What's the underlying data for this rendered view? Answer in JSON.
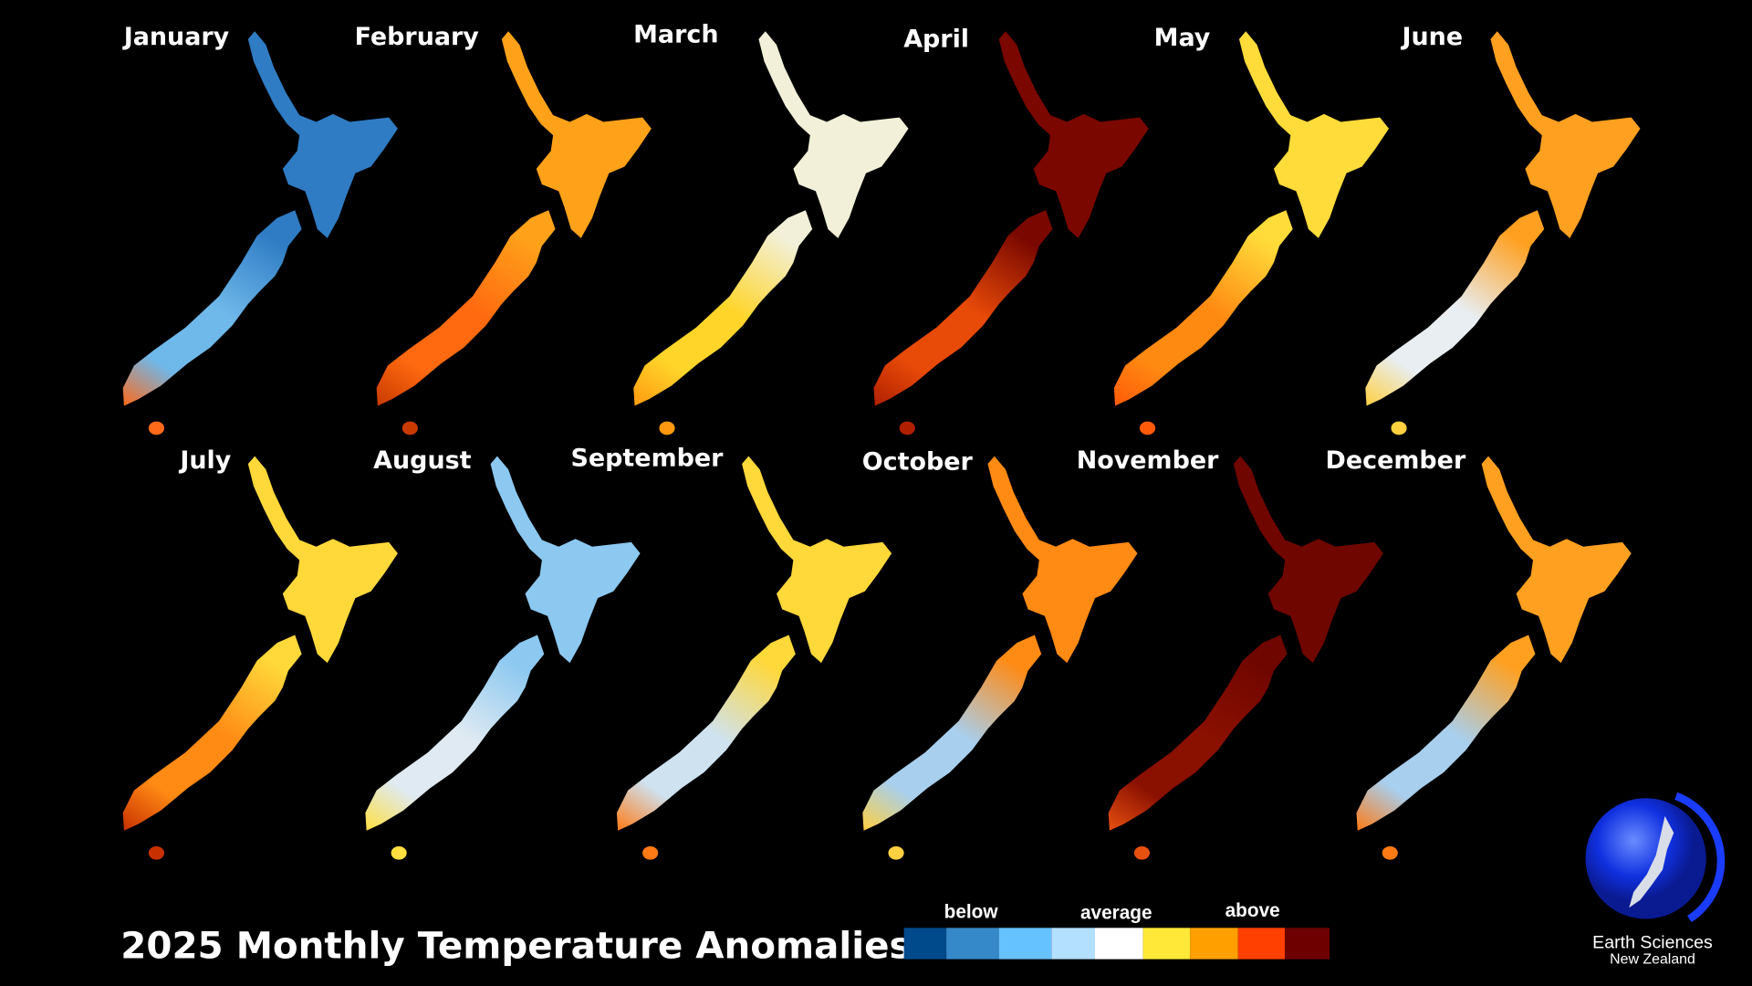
{
  "title": "2025 Monthly Temperature Anomalies",
  "maps": [
    {
      "month": "January",
      "north_color": "#2f7cc4",
      "south_color": "#6fb8ea",
      "edge_color": "#ff6a1a"
    },
    {
      "month": "February",
      "north_color": "#ffa21a",
      "south_color": "#ff6a10",
      "edge_color": "#c83a00"
    },
    {
      "month": "March",
      "north_color": "#f2f0d8",
      "south_color": "#ffd52a",
      "edge_color": "#ff9a10"
    },
    {
      "month": "April",
      "north_color": "#7a0800",
      "south_color": "#e84a08",
      "edge_color": "#b02000"
    },
    {
      "month": "May",
      "north_color": "#ffdc3a",
      "south_color": "#ff8a12",
      "edge_color": "#ff5a08"
    },
    {
      "month": "June",
      "north_color": "#ffa020",
      "south_color": "#e8eef2",
      "edge_color": "#ffd040"
    },
    {
      "month": "July",
      "north_color": "#ffd83a",
      "south_color": "#ff8a14",
      "edge_color": "#c83000"
    },
    {
      "month": "August",
      "north_color": "#8cc8f0",
      "south_color": "#dfeaf2",
      "edge_color": "#ffe040"
    },
    {
      "month": "September",
      "north_color": "#ffd83a",
      "south_color": "#cfe2f0",
      "edge_color": "#ff7a14"
    },
    {
      "month": "October",
      "north_color": "#ff8a14",
      "south_color": "#a8cfee",
      "edge_color": "#ffd040"
    },
    {
      "month": "November",
      "north_color": "#700600",
      "south_color": "#8a1000",
      "edge_color": "#e85010"
    },
    {
      "month": "December",
      "north_color": "#ffa020",
      "south_color": "#a8cfee",
      "edge_color": "#ff7a14"
    }
  ],
  "legend": {
    "labels": [
      "below",
      "average",
      "above"
    ],
    "colors": [
      "#004a8c",
      "#3689c8",
      "#66c2ff",
      "#b3e0ff",
      "#ffffff",
      "#ffe838",
      "#ffa000",
      "#ff4000",
      "#6e0000"
    ]
  },
  "logo": {
    "line1": "Earth Sciences",
    "line2": "New Zealand",
    "accent": "#1a3cff"
  }
}
